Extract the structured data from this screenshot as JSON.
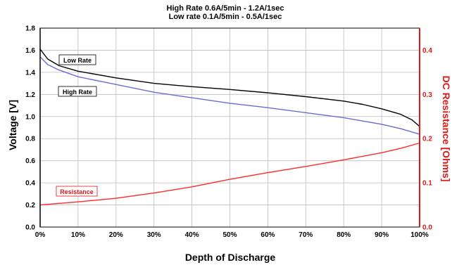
{
  "chart_data": {
    "type": "line",
    "title_lines": [
      "High Rate 0.6A/5min - 1.2A/1sec",
      "Low rate 0.1A/5min - 0.5A/1sec"
    ],
    "xlabel": "Depth of Discharge",
    "ylabel_left": "Voltage [V]",
    "ylabel_right": "DC Resistance [Ohms]",
    "x_ticks": [
      "0%",
      "10%",
      "20%",
      "30%",
      "40%",
      "50%",
      "60%",
      "70%",
      "80%",
      "90%",
      "100%"
    ],
    "y_left_ticks": [
      "0.0",
      "0.2",
      "0.4",
      "0.6",
      "0.8",
      "1.0",
      "1.2",
      "1.4",
      "1.6",
      "1.8"
    ],
    "y_right_ticks": [
      "0.0",
      "0.1",
      "0.2",
      "0.3",
      "0.4"
    ],
    "xlim": [
      0,
      100
    ],
    "ylim_left": [
      0,
      1.8
    ],
    "ylim_right": [
      0,
      0.45
    ],
    "grid": true,
    "series": [
      {
        "name": "Low Rate",
        "axis": "left",
        "color": "#000000",
        "x": [
          0,
          2,
          5,
          10,
          20,
          30,
          40,
          50,
          60,
          70,
          80,
          85,
          90,
          95,
          98,
          100
        ],
        "y": [
          1.61,
          1.52,
          1.46,
          1.41,
          1.35,
          1.3,
          1.27,
          1.245,
          1.215,
          1.18,
          1.14,
          1.11,
          1.07,
          1.02,
          0.97,
          0.91
        ]
      },
      {
        "name": "High Rate",
        "axis": "left",
        "color": "#6b6bd6",
        "x": [
          0,
          2,
          5,
          10,
          20,
          30,
          40,
          50,
          60,
          70,
          80,
          90,
          95,
          100
        ],
        "y": [
          1.54,
          1.47,
          1.42,
          1.36,
          1.29,
          1.22,
          1.17,
          1.12,
          1.08,
          1.035,
          0.99,
          0.93,
          0.89,
          0.84
        ]
      },
      {
        "name": "Resistance",
        "axis": "right",
        "color": "#ff2a2a",
        "x": [
          0,
          10,
          20,
          30,
          40,
          50,
          60,
          70,
          80,
          90,
          95,
          100
        ],
        "y": [
          0.05,
          0.057,
          0.065,
          0.077,
          0.091,
          0.108,
          0.123,
          0.137,
          0.152,
          0.168,
          0.178,
          0.19
        ]
      }
    ]
  }
}
